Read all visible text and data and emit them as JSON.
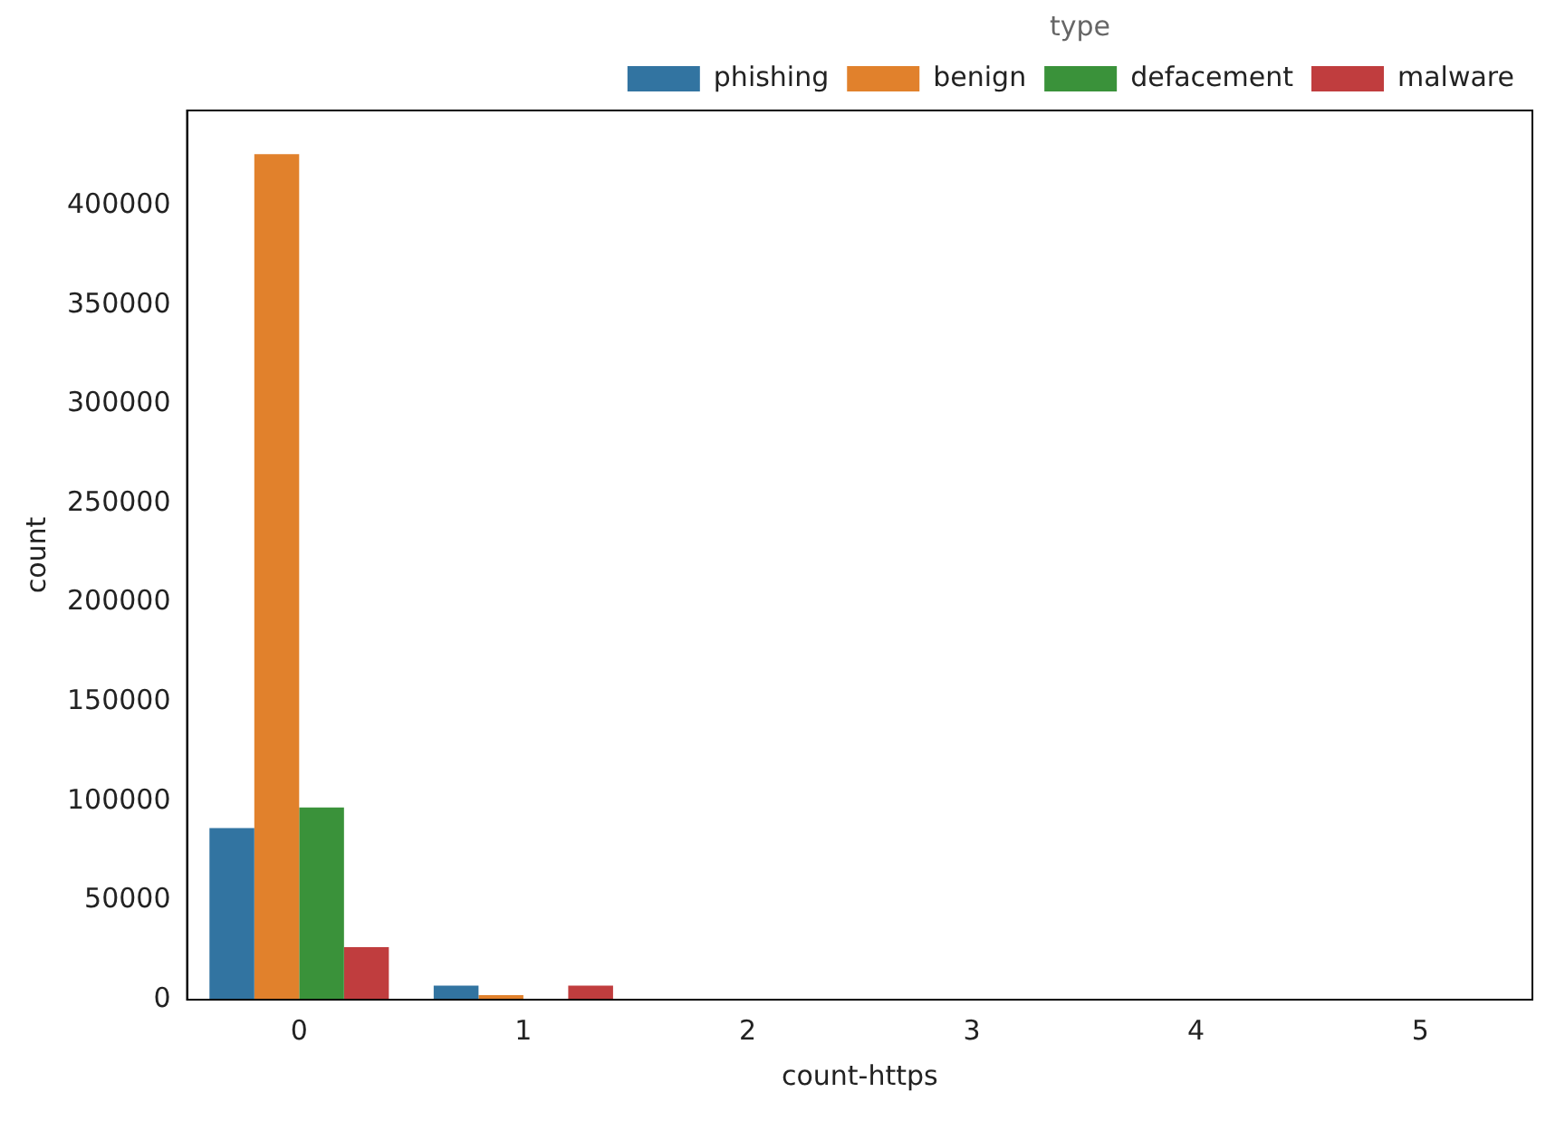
{
  "chart_data": {
    "type": "bar",
    "xlabel": "count-https",
    "ylabel": "count",
    "legend_title": "type",
    "categories": [
      "0",
      "1",
      "2",
      "3",
      "4",
      "5"
    ],
    "series": [
      {
        "name": "phishing",
        "color": "#3274a1",
        "values": [
          86500,
          7100,
          0,
          0,
          0,
          0
        ]
      },
      {
        "name": "benign",
        "color": "#e1812c",
        "values": [
          426000,
          2300,
          0,
          0,
          0,
          0
        ]
      },
      {
        "name": "defacement",
        "color": "#3a923a",
        "values": [
          96800,
          0,
          0,
          0,
          0,
          0
        ]
      },
      {
        "name": "malware",
        "color": "#c03d3e",
        "values": [
          26500,
          7100,
          0,
          0,
          0,
          0
        ]
      }
    ],
    "ylim": [
      0,
      448000
    ],
    "yticks": [
      0,
      50000,
      100000,
      150000,
      200000,
      250000,
      300000,
      350000,
      400000
    ],
    "grid": false,
    "legend": "top right"
  }
}
